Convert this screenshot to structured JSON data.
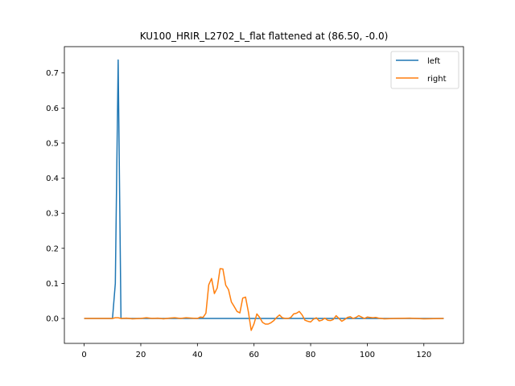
{
  "chart_data": {
    "type": "line",
    "title": "KU100_HRIR_L2702_L_flat flattened at (86.50, -0.0)",
    "xlabel": "",
    "ylabel": "",
    "xlim": [
      -7,
      134
    ],
    "ylim": [
      -0.071,
      0.775
    ],
    "xticks": [
      0,
      20,
      40,
      60,
      80,
      100,
      120
    ],
    "yticks": [
      0.0,
      0.1,
      0.2,
      0.3,
      0.4,
      0.5,
      0.6,
      0.7
    ],
    "ytick_labels": [
      "0.0",
      "0.1",
      "0.2",
      "0.3",
      "0.4",
      "0.5",
      "0.6",
      "0.7"
    ],
    "grid": false,
    "legend_position": "top-right",
    "series": [
      {
        "name": "left",
        "color": "#1f77b4",
        "points": [
          [
            0,
            0
          ],
          [
            10,
            0
          ],
          [
            11,
            0.1
          ],
          [
            12,
            0.737
          ],
          [
            13,
            0
          ],
          [
            20,
            0
          ],
          [
            40,
            0
          ],
          [
            60,
            0
          ],
          [
            80,
            0
          ],
          [
            100,
            0
          ],
          [
            105,
            0
          ],
          [
            127,
            0
          ]
        ]
      },
      {
        "name": "right",
        "color": "#ff7f0e",
        "points": [
          [
            0,
            0
          ],
          [
            10,
            0
          ],
          [
            11,
            0.002
          ],
          [
            12,
            0.002
          ],
          [
            13,
            0
          ],
          [
            15,
            0.001
          ],
          [
            17,
            -0.001
          ],
          [
            20,
            0
          ],
          [
            22,
            0.002
          ],
          [
            24,
            0
          ],
          [
            26,
            0.001
          ],
          [
            28,
            -0.001
          ],
          [
            30,
            0.001
          ],
          [
            32,
            0.002
          ],
          [
            34,
            0
          ],
          [
            36,
            0.002
          ],
          [
            38,
            0.001
          ],
          [
            40,
            0
          ],
          [
            41,
            0.004
          ],
          [
            42,
            0.003
          ],
          [
            43,
            0.015
          ],
          [
            44,
            0.096
          ],
          [
            45,
            0.114
          ],
          [
            46,
            0.071
          ],
          [
            47,
            0.087
          ],
          [
            48,
            0.142
          ],
          [
            49,
            0.141
          ],
          [
            50,
            0.095
          ],
          [
            51,
            0.082
          ],
          [
            52,
            0.047
          ],
          [
            53,
            0.034
          ],
          [
            54,
            0.02
          ],
          [
            55,
            0.016
          ],
          [
            56,
            0.058
          ],
          [
            57,
            0.061
          ],
          [
            58,
            0.019
          ],
          [
            59,
            -0.034
          ],
          [
            60,
            -0.015
          ],
          [
            61,
            0.013
          ],
          [
            62,
            0.003
          ],
          [
            63,
            -0.011
          ],
          [
            64,
            -0.016
          ],
          [
            65,
            -0.016
          ],
          [
            66,
            -0.012
          ],
          [
            67,
            -0.006
          ],
          [
            68,
            0.003
          ],
          [
            69,
            0.01
          ],
          [
            70,
            0.002
          ],
          [
            71,
            0
          ],
          [
            72,
            0
          ],
          [
            73,
            0.003
          ],
          [
            74,
            0.013
          ],
          [
            75,
            0.015
          ],
          [
            76,
            0.02
          ],
          [
            77,
            0.01
          ],
          [
            78,
            -0.005
          ],
          [
            79,
            -0.008
          ],
          [
            80,
            -0.01
          ],
          [
            81,
            -0.002
          ],
          [
            82,
            0.002
          ],
          [
            83,
            -0.007
          ],
          [
            84,
            -0.005
          ],
          [
            85,
            0.001
          ],
          [
            86,
            -0.005
          ],
          [
            87,
            -0.006
          ],
          [
            88,
            -0.003
          ],
          [
            89,
            0.008
          ],
          [
            90,
            0
          ],
          [
            91,
            -0.008
          ],
          [
            92,
            -0.003
          ],
          [
            93,
            0.003
          ],
          [
            94,
            0.005
          ],
          [
            95,
            0
          ],
          [
            96,
            0.003
          ],
          [
            97,
            0.008
          ],
          [
            98,
            0.004
          ],
          [
            99,
            0
          ],
          [
            100,
            0.004
          ],
          [
            101,
            0.003
          ],
          [
            102,
            0.002
          ],
          [
            103,
            0.003
          ],
          [
            104,
            0.001
          ],
          [
            105,
            0
          ],
          [
            106,
            -0.001
          ],
          [
            110,
            0
          ],
          [
            115,
            0.001
          ],
          [
            120,
            -0.001
          ],
          [
            127,
            0
          ]
        ]
      }
    ]
  }
}
